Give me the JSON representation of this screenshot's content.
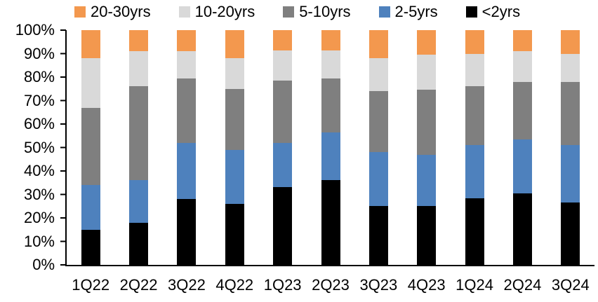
{
  "chart_data": {
    "type": "bar",
    "stacked": true,
    "percent_stacked": true,
    "title": "",
    "xlabel": "",
    "ylabel": "",
    "unit": "%",
    "grid": false,
    "ylim": [
      0,
      100
    ],
    "ytick_step": 10,
    "ytick_labels": [
      "0%",
      "10%",
      "20%",
      "30%",
      "40%",
      "50%",
      "60%",
      "70%",
      "80%",
      "90%",
      "100%"
    ],
    "categories": [
      "1Q22",
      "2Q22",
      "3Q22",
      "4Q22",
      "1Q23",
      "2Q23",
      "3Q23",
      "4Q23",
      "1Q24",
      "2Q24",
      "3Q24"
    ],
    "series": [
      {
        "name": "<2yrs",
        "color": "#000000",
        "values": [
          15,
          18,
          28,
          26,
          33,
          36,
          25,
          25,
          28.5,
          30.5,
          26.5
        ]
      },
      {
        "name": "2-5yrs",
        "color": "#4E81BD",
        "values": [
          19,
          18,
          24,
          23,
          19,
          20.5,
          23,
          22,
          22.5,
          23,
          24.5
        ]
      },
      {
        "name": "5-10yrs",
        "color": "#7F7F7F",
        "values": [
          33,
          40,
          27.5,
          26,
          26.5,
          23,
          26,
          27.5,
          25,
          24.5,
          27
        ]
      },
      {
        "name": "10-20yrs",
        "color": "#D9D9D9",
        "values": [
          21,
          15,
          11.5,
          13,
          13,
          12,
          14,
          15,
          14,
          13,
          12
        ]
      },
      {
        "name": "20-30yrs",
        "color": "#F3984E",
        "values": [
          12,
          9,
          9,
          12,
          8.5,
          8.5,
          12,
          10.5,
          10,
          9,
          10
        ]
      }
    ],
    "legend": {
      "position": "top",
      "order": [
        "20-30yrs",
        "10-20yrs",
        "5-10yrs",
        "2-5yrs",
        "<2yrs"
      ]
    }
  },
  "colors": {
    "background": "#FFFFFF",
    "axis": "#000000",
    "text": "#000000"
  }
}
